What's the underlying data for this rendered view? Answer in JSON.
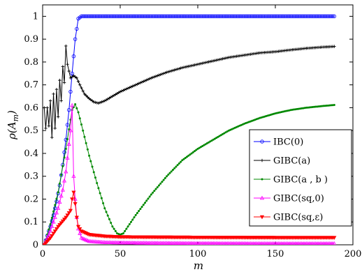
{
  "chart_data": {
    "type": "line",
    "title": "",
    "xlabel": "m",
    "ylabel": "ρ(A_m)",
    "xlim": [
      0,
      200
    ],
    "ylim": [
      0,
      1.05
    ],
    "x_ticks": [
      "0",
      "50",
      "100",
      "150",
      "200"
    ],
    "y_ticks": [
      "0",
      "0.1",
      "0.2",
      "0.3",
      "0.4",
      "0.5",
      "0.6",
      "0.7",
      "0.8",
      "0.9",
      "1"
    ],
    "grid": false,
    "legend_position": "lower-right",
    "series": [
      {
        "name": "IBC(0)",
        "color": "#0000ff",
        "marker": "circle",
        "points": [
          [
            1,
            0.0
          ],
          [
            3,
            0.04
          ],
          [
            5,
            0.08
          ],
          [
            7,
            0.13
          ],
          [
            9,
            0.19
          ],
          [
            11,
            0.26
          ],
          [
            13,
            0.35
          ],
          [
            15,
            0.46
          ],
          [
            17,
            0.59
          ],
          [
            19,
            0.75
          ],
          [
            21,
            0.9
          ],
          [
            23,
            0.99
          ],
          [
            25,
            1.0
          ],
          [
            50,
            1.0
          ],
          [
            100,
            1.0
          ],
          [
            150,
            1.0
          ],
          [
            188,
            1.0
          ]
        ]
      },
      {
        "name": "GIBC(a)",
        "color": "#000000",
        "marker": "plus",
        "points": [
          [
            1,
            0.6
          ],
          [
            2,
            0.51
          ],
          [
            3,
            0.6
          ],
          [
            4,
            0.52
          ],
          [
            5,
            0.63
          ],
          [
            6,
            0.47
          ],
          [
            7,
            0.66
          ],
          [
            8,
            0.51
          ],
          [
            9,
            0.68
          ],
          [
            10,
            0.56
          ],
          [
            11,
            0.72
          ],
          [
            12,
            0.63
          ],
          [
            13,
            0.78
          ],
          [
            14,
            0.71
          ],
          [
            15,
            0.87
          ],
          [
            16,
            0.79
          ],
          [
            17,
            0.76
          ],
          [
            18,
            0.73
          ],
          [
            20,
            0.74
          ],
          [
            22,
            0.73
          ],
          [
            24,
            0.7
          ],
          [
            27,
            0.66
          ],
          [
            30,
            0.64
          ],
          [
            33,
            0.625
          ],
          [
            36,
            0.62
          ],
          [
            40,
            0.63
          ],
          [
            45,
            0.65
          ],
          [
            50,
            0.67
          ],
          [
            60,
            0.7
          ],
          [
            70,
            0.73
          ],
          [
            80,
            0.755
          ],
          [
            90,
            0.775
          ],
          [
            100,
            0.79
          ],
          [
            110,
            0.805
          ],
          [
            120,
            0.82
          ],
          [
            130,
            0.83
          ],
          [
            140,
            0.84
          ],
          [
            150,
            0.845
          ],
          [
            160,
            0.853
          ],
          [
            170,
            0.86
          ],
          [
            180,
            0.865
          ],
          [
            188,
            0.868
          ]
        ]
      },
      {
        "name": "GIBC(a , b )",
        "color": "#008800",
        "marker": "dot",
        "points": [
          [
            1,
            0.0
          ],
          [
            5,
            0.09
          ],
          [
            10,
            0.23
          ],
          [
            15,
            0.42
          ],
          [
            19,
            0.59
          ],
          [
            21,
            0.615
          ],
          [
            23,
            0.58
          ],
          [
            26,
            0.5
          ],
          [
            30,
            0.39
          ],
          [
            35,
            0.27
          ],
          [
            40,
            0.16
          ],
          [
            45,
            0.08
          ],
          [
            48,
            0.05
          ],
          [
            50,
            0.045
          ],
          [
            52,
            0.05
          ],
          [
            55,
            0.08
          ],
          [
            60,
            0.13
          ],
          [
            70,
            0.22
          ],
          [
            80,
            0.3
          ],
          [
            90,
            0.37
          ],
          [
            100,
            0.42
          ],
          [
            110,
            0.46
          ],
          [
            120,
            0.5
          ],
          [
            130,
            0.53
          ],
          [
            140,
            0.555
          ],
          [
            150,
            0.575
          ],
          [
            160,
            0.59
          ],
          [
            170,
            0.6
          ],
          [
            180,
            0.607
          ],
          [
            188,
            0.612
          ]
        ]
      },
      {
        "name": "GIBC(sq,0)",
        "color": "#ff00ff",
        "marker": "triangle-up",
        "points": [
          [
            1,
            0.0
          ],
          [
            5,
            0.06
          ],
          [
            10,
            0.16
          ],
          [
            13,
            0.24
          ],
          [
            15,
            0.32
          ],
          [
            17,
            0.44
          ],
          [
            18,
            0.5
          ],
          [
            19,
            0.61
          ],
          [
            20,
            0.3
          ],
          [
            21,
            0.2
          ],
          [
            22,
            0.12
          ],
          [
            23,
            0.07
          ],
          [
            25,
            0.03
          ],
          [
            30,
            0.015
          ],
          [
            40,
            0.01
          ],
          [
            60,
            0.008
          ],
          [
            100,
            0.006
          ],
          [
            150,
            0.005
          ],
          [
            188,
            0.005
          ]
        ]
      },
      {
        "name": "GIBC(sq,ε)",
        "color": "#ff0000",
        "marker": "triangle-down",
        "points": [
          [
            1,
            0.0
          ],
          [
            5,
            0.03
          ],
          [
            10,
            0.08
          ],
          [
            15,
            0.12
          ],
          [
            18,
            0.15
          ],
          [
            19,
            0.2
          ],
          [
            20,
            0.23
          ],
          [
            21,
            0.18
          ],
          [
            22,
            0.12
          ],
          [
            23,
            0.08
          ],
          [
            25,
            0.06
          ],
          [
            30,
            0.045
          ],
          [
            40,
            0.038
          ],
          [
            50,
            0.035
          ],
          [
            70,
            0.034
          ],
          [
            100,
            0.033
          ],
          [
            150,
            0.032
          ],
          [
            188,
            0.032
          ]
        ]
      }
    ]
  }
}
